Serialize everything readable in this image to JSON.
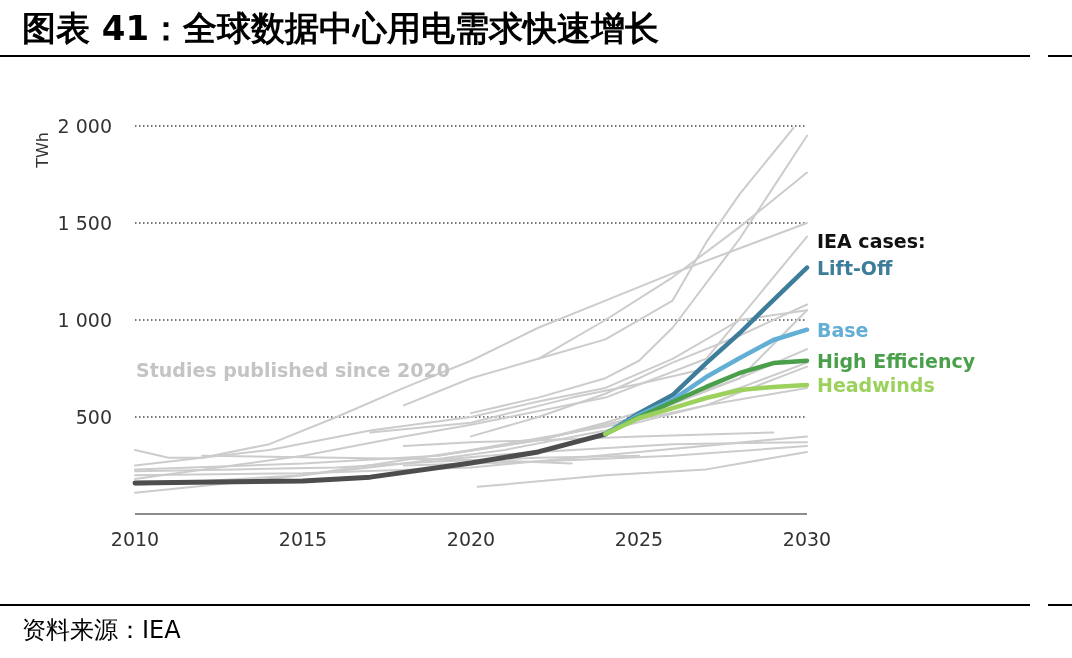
{
  "chart_data": {
    "type": "line",
    "title": "图表 41：全球数据中心用电需求快速增长",
    "ylabel": "TWh",
    "xlim": [
      2010,
      2030
    ],
    "xticks": [
      2010,
      2015,
      2020,
      2025,
      2030
    ],
    "ylim": [
      0,
      2000
    ],
    "yticks": [
      {
        "value": 500,
        "label": "500"
      },
      {
        "value": 1000,
        "label": "1 000"
      },
      {
        "value": 1500,
        "label": "1 500"
      },
      {
        "value": 2000,
        "label": "2 000"
      }
    ],
    "grid": "y",
    "line_style": "solid",
    "annotations": [
      "Studies published since 2020",
      "IEA cases:",
      "资料来源：IEA"
    ],
    "series": [
      {
        "color": "#cccccc",
        "x": [
          2010,
          2011,
          2012,
          2014,
          2016,
          2018,
          2020,
          2022,
          2024,
          2026,
          2028,
          2030
        ],
        "values": [
          330,
          290,
          290,
          360,
          500,
          650,
          790,
          960,
          1100,
          1240,
          1370,
          1500
        ]
      },
      {
        "color": "#cccccc",
        "x": [
          2018,
          2020,
          2022,
          2024,
          2026,
          2027,
          2028,
          2029.6
        ],
        "values": [
          560,
          700,
          800,
          900,
          1100,
          1400,
          1650,
          1990
        ]
      },
      {
        "color": "#cccccc",
        "x": [
          2020,
          2022,
          2024,
          2025,
          2026,
          2028,
          2030
        ],
        "values": [
          520,
          600,
          700,
          790,
          960,
          1420,
          1950
        ]
      },
      {
        "color": "#cccccc",
        "x": [
          2022,
          2024,
          2026,
          2028,
          2030
        ],
        "values": [
          800,
          1000,
          1220,
          1480,
          1760
        ]
      },
      {
        "color": "#cccccc",
        "x": [
          2010,
          2014,
          2017,
          2020,
          2022,
          2024,
          2026,
          2028,
          2030
        ],
        "values": [
          250,
          330,
          430,
          500,
          580,
          650,
          800,
          1000,
          1050
        ]
      },
      {
        "color": "#cccccc",
        "x": [
          2010,
          2015,
          2018,
          2020,
          2024,
          2027,
          2030
        ],
        "values": [
          180,
          300,
          400,
          460,
          600,
          800,
          1430
        ]
      },
      {
        "color": "#cccccc",
        "x": [
          2010,
          2015,
          2019,
          2022,
          2025,
          2028,
          2030
        ],
        "values": [
          230,
          260,
          300,
          380,
          500,
          700,
          1050
        ]
      },
      {
        "color": "#cccccc",
        "x": [
          2019,
          2022,
          2024,
          2026,
          2028,
          2030
        ],
        "values": [
          300,
          380,
          470,
          580,
          700,
          850
        ]
      },
      {
        "color": "#cccccc",
        "x": [
          2010,
          2014,
          2018,
          2021,
          2024,
          2027,
          2030
        ],
        "values": [
          110,
          180,
          260,
          330,
          430,
          560,
          760
        ]
      },
      {
        "color": "#cccccc",
        "x": [
          2010,
          2015,
          2020,
          2025,
          2030
        ],
        "values": [
          200,
          210,
          240,
          320,
          400
        ]
      },
      {
        "color": "#cccccc",
        "x": [
          2018,
          2022,
          2026,
          2030
        ],
        "values": [
          250,
          270,
          300,
          350
        ]
      },
      {
        "color": "#cccccc",
        "x": [
          2020.2,
          2024,
          2027,
          2030
        ],
        "values": [
          140,
          200,
          230,
          320
        ]
      },
      {
        "color": "#cccccc",
        "x": [
          2012,
          2016,
          2020,
          2023
        ],
        "values": [
          300,
          290,
          280,
          260
        ]
      },
      {
        "color": "#cccccc",
        "x": [
          2018,
          2020,
          2022,
          2025,
          2029
        ],
        "values": [
          350,
          370,
          380,
          400,
          420
        ]
      },
      {
        "color": "#cccccc",
        "x": [
          2010,
          2015,
          2020,
          2024,
          2027,
          2030
        ],
        "values": [
          150,
          200,
          330,
          450,
          560,
          650
        ]
      },
      {
        "color": "#cccccc",
        "x": [
          2017,
          2020,
          2023,
          2025,
          2027
        ],
        "values": [
          420,
          470,
          600,
          670,
          750
        ]
      },
      {
        "color": "#cccccc",
        "x": [
          2019,
          2022,
          2026,
          2030
        ],
        "values": [
          280,
          320,
          360,
          370
        ]
      },
      {
        "color": "#cccccc",
        "x": [
          2010,
          2013,
          2016,
          2019,
          2022,
          2025
        ],
        "values": [
          220,
          230,
          240,
          270,
          290,
          300
        ]
      },
      {
        "color": "#cccccc",
        "x": [
          2020,
          2022,
          2024,
          2026,
          2028,
          2030
        ],
        "values": [
          400,
          500,
          620,
          780,
          920,
          1080
        ]
      },
      {
        "color": "#cccccc",
        "x": [
          2022,
          2025,
          2028,
          2030
        ],
        "values": [
          380,
          500,
          650,
          780
        ]
      },
      {
        "color": "#4d4d4f",
        "x": [
          2010,
          2015,
          2017,
          2020,
          2022,
          2024
        ],
        "values": [
          160,
          170,
          190,
          263,
          320,
          412
        ]
      },
      {
        "name": "Lift-Off",
        "color": "#3d7d99",
        "x": [
          2024,
          2025,
          2026,
          2027,
          2028,
          2029,
          2030
        ],
        "values": [
          412,
          520,
          613,
          778,
          933,
          1103,
          1270
        ]
      },
      {
        "name": "Base",
        "color": "#62aed4",
        "x": [
          2024,
          2025,
          2026,
          2027,
          2028,
          2029,
          2030
        ],
        "values": [
          412,
          510,
          588,
          706,
          804,
          897,
          950
        ]
      },
      {
        "name": "High Efficiency",
        "color": "#4a9f4a",
        "x": [
          2024,
          2025,
          2026,
          2027,
          2028,
          2029,
          2030
        ],
        "values": [
          412,
          500,
          577,
          655,
          727,
          778,
          790
        ]
      },
      {
        "name": "Headwinds",
        "color": "#9bd15c",
        "x": [
          2024,
          2025,
          2026,
          2027,
          2028,
          2029,
          2030
        ],
        "values": [
          412,
          495,
          546,
          598,
          639,
          655,
          665
        ]
      }
    ]
  }
}
